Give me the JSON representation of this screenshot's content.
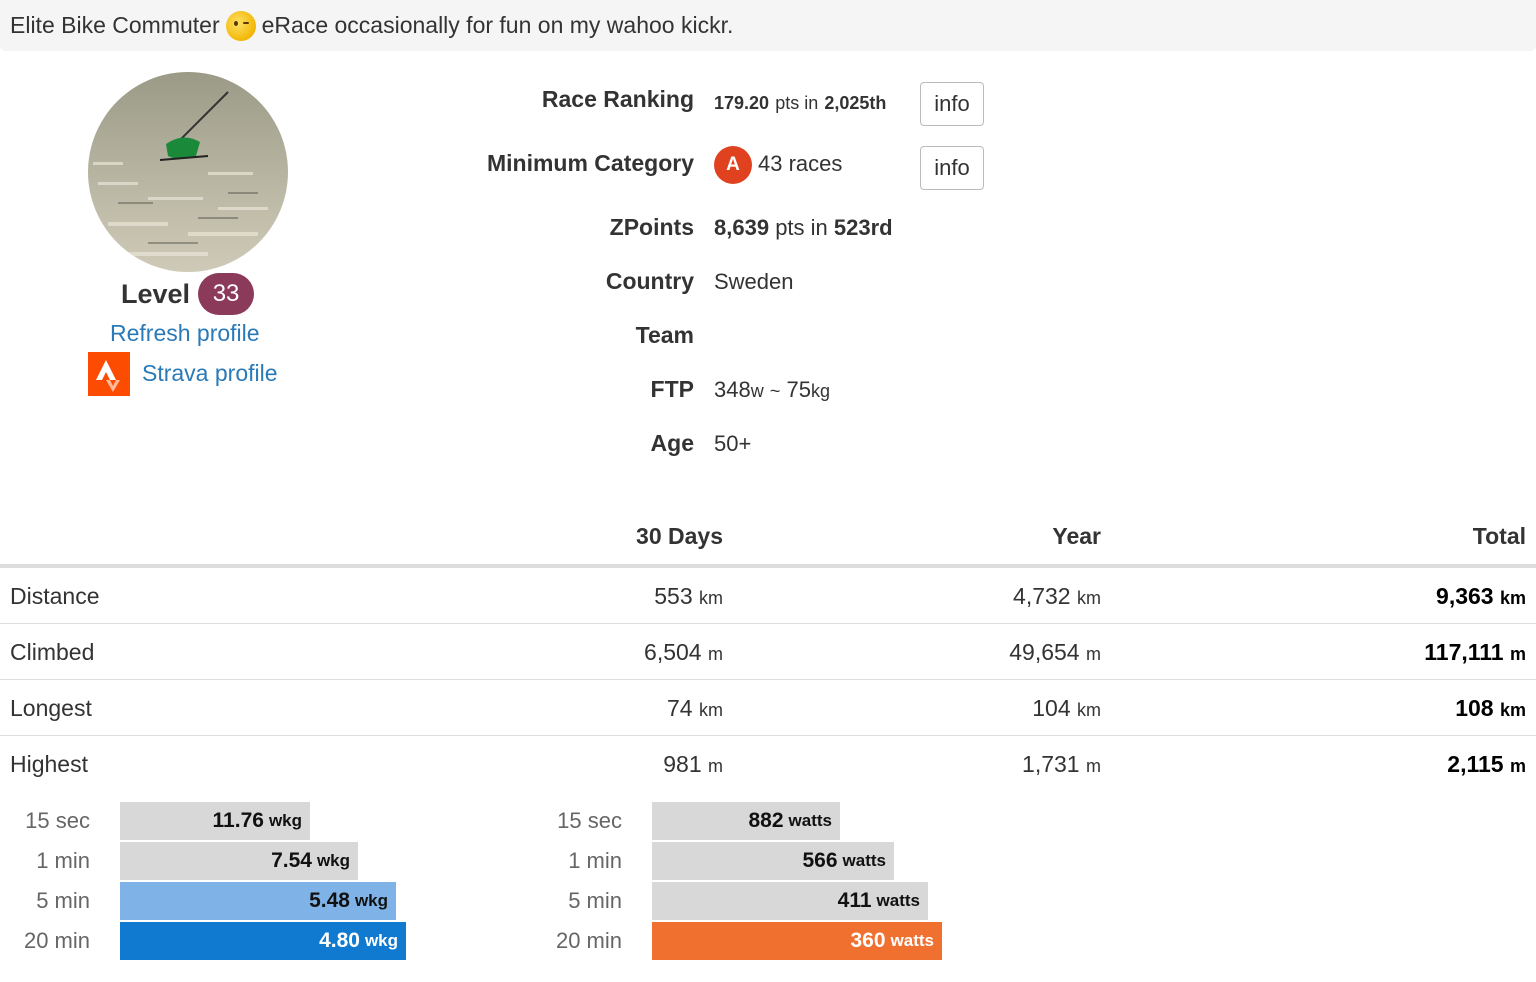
{
  "bio": {
    "before": "Elite Bike Commuter",
    "emoji": "thinking-face-emoji",
    "after": "eRace occasionally for fun on my wahoo kickr."
  },
  "profile": {
    "level_label": "Level",
    "level": "33",
    "refresh_link": "Refresh profile",
    "strava_link": "Strava profile"
  },
  "info": {
    "race_ranking": {
      "label": "Race Ranking",
      "points": "179.20",
      "pts_in": "pts in",
      "rank": "2,025th",
      "button": "info"
    },
    "minimum_category": {
      "label": "Minimum Category",
      "category": "A",
      "races": "43 races",
      "button": "info"
    },
    "zpoints": {
      "label": "ZPoints",
      "points": "8,639",
      "pts_in": "pts in",
      "rank": "523rd"
    },
    "country": {
      "label": "Country",
      "value": "Sweden"
    },
    "team": {
      "label": "Team",
      "value": ""
    },
    "ftp": {
      "label": "FTP",
      "watts": "348",
      "w_unit": "w",
      "sep": "~",
      "kg": "75",
      "kg_unit": "kg"
    },
    "age": {
      "label": "Age",
      "value": "50+"
    }
  },
  "stats": {
    "columns": [
      "30 Days",
      "Year",
      "Total"
    ],
    "rows": [
      {
        "label": "Distance",
        "d30": "553",
        "d30_unit": "km",
        "year": "4,732",
        "year_unit": "km",
        "total": "9,363",
        "total_unit": "km"
      },
      {
        "label": "Climbed",
        "d30": "6,504",
        "d30_unit": "m",
        "year": "49,654",
        "year_unit": "m",
        "total": "117,111",
        "total_unit": "m"
      },
      {
        "label": "Longest",
        "d30": "74",
        "d30_unit": "km",
        "year": "104",
        "year_unit": "km",
        "total": "108",
        "total_unit": "km"
      },
      {
        "label": "Highest",
        "d30": "981",
        "d30_unit": "m",
        "year": "1,731",
        "year_unit": "m",
        "total": "2,115",
        "total_unit": "m"
      }
    ]
  },
  "power_wkg": [
    {
      "label": "15 sec",
      "value": "11.76",
      "unit": "wkg"
    },
    {
      "label": "1 min",
      "value": "7.54",
      "unit": "wkg"
    },
    {
      "label": "5 min",
      "value": "5.48",
      "unit": "wkg"
    },
    {
      "label": "20 min",
      "value": "4.80",
      "unit": "wkg"
    }
  ],
  "power_watts": [
    {
      "label": "15 sec",
      "value": "882",
      "unit": "watts"
    },
    {
      "label": "1 min",
      "value": "566",
      "unit": "watts"
    },
    {
      "label": "5 min",
      "value": "411",
      "unit": "watts"
    },
    {
      "label": "20 min",
      "value": "360",
      "unit": "watts"
    }
  ],
  "colors": {
    "level_badge": "#8b3a5a",
    "category_a": "#e0421f",
    "link": "#2a7ab8",
    "strava": "#fc4c02",
    "bar_gray": "#d8d8d8",
    "bar_lightblue": "#7fb3e8",
    "bar_blue": "#0f7ad0",
    "bar_orange": "#f07030"
  }
}
